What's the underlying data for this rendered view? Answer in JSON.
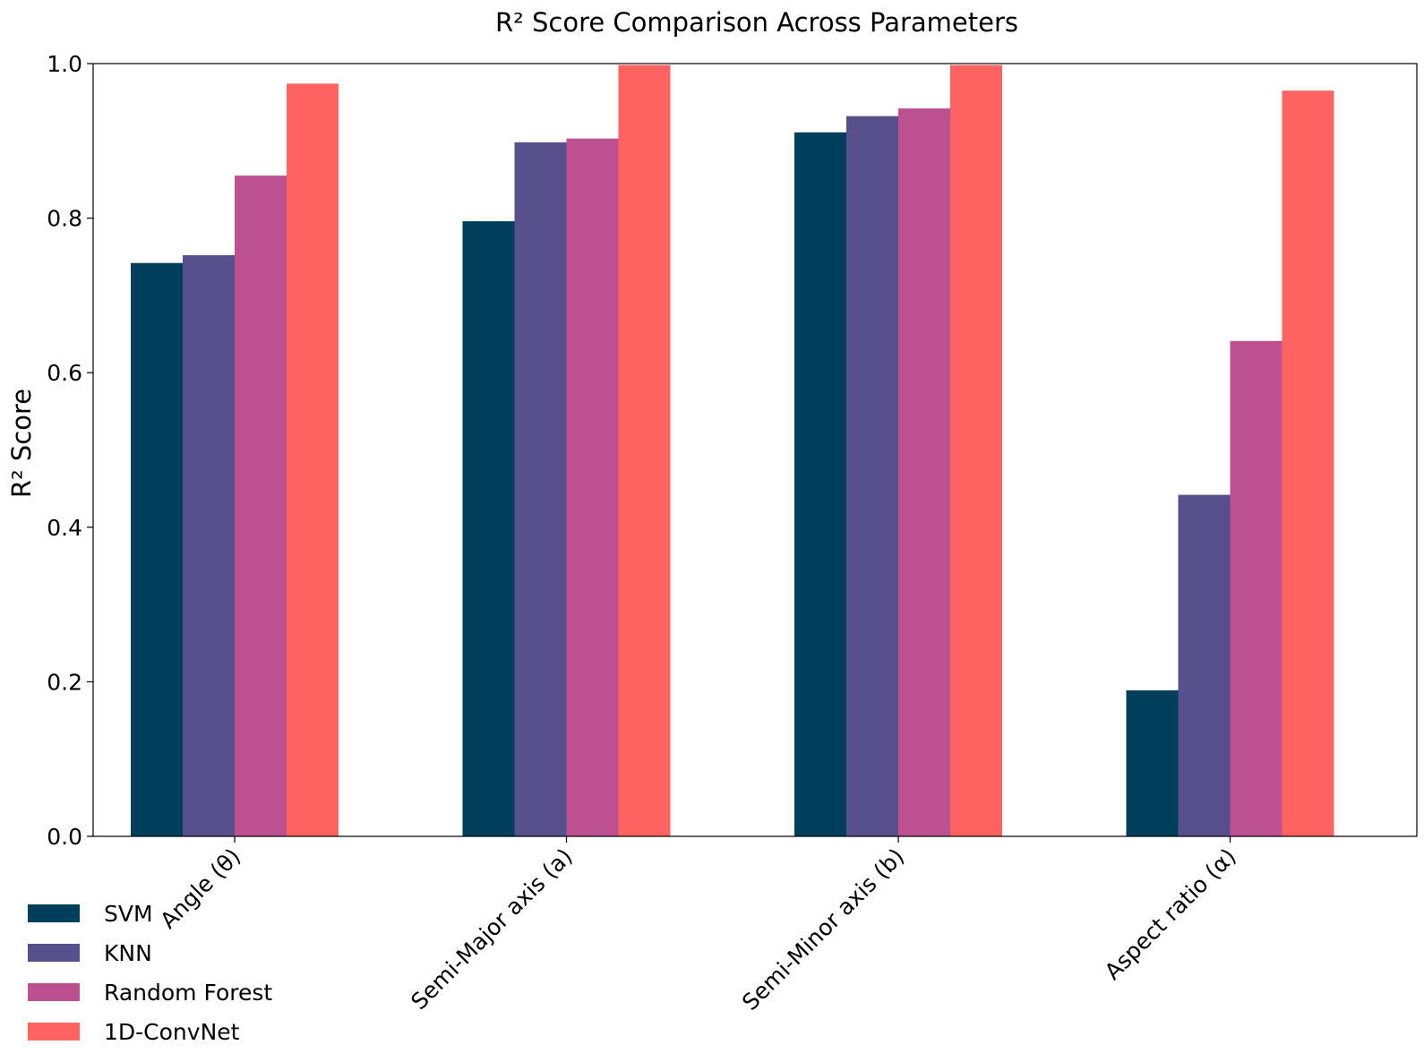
{
  "chart_data": {
    "type": "bar",
    "title": "R² Score Comparison Across Parameters",
    "xlabel": "",
    "ylabel": "R² Score",
    "ylim": [
      0,
      1.0
    ],
    "yticks": [
      "0.0",
      "0.2",
      "0.4",
      "0.6",
      "0.8",
      "1.0"
    ],
    "categories": [
      "Angle (θ)",
      "Semi-Major axis (a)",
      "Semi-Minor axis (b)",
      "Aspect ratio (α)"
    ],
    "series": [
      {
        "name": "SVM",
        "color": "#003f5c",
        "values": [
          0.742,
          0.796,
          0.911,
          0.189
        ]
      },
      {
        "name": "KNN",
        "color": "#58508d",
        "values": [
          0.752,
          0.898,
          0.932,
          0.442
        ]
      },
      {
        "name": "Random Forest",
        "color": "#bc5090",
        "values": [
          0.855,
          0.903,
          0.942,
          0.641
        ]
      },
      {
        "name": "1D-ConvNet",
        "color": "#ff6361",
        "values": [
          0.974,
          0.998,
          0.998,
          0.965
        ]
      }
    ],
    "grid": false,
    "legend_position": "bottom-left"
  }
}
